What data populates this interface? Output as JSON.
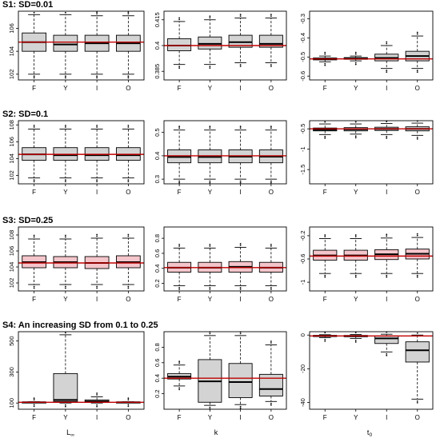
{
  "colors": {
    "box_fill": "#d3d3d3",
    "box_fill_pink": "#f4c6cb",
    "ref_line": "#c00000",
    "median": "#000000"
  },
  "x_axis_labels": [
    {
      "main": "L",
      "sub": "∞"
    },
    {
      "main": "k",
      "sub": ""
    },
    {
      "main": "t",
      "sub": "0"
    }
  ],
  "chart_data": [
    {
      "type": "box",
      "title": "S1: SD=0.01",
      "row": 0,
      "col": 0,
      "categories": [
        "F",
        "Y",
        "I",
        "O"
      ],
      "ylim": [
        101.5,
        107.5
      ],
      "yticks": [
        102,
        104,
        106
      ],
      "ref": 104.8,
      "boxes": [
        {
          "low": 102,
          "q1": 104,
          "med": 104.8,
          "q3": 105.6,
          "high": 107.2
        },
        {
          "low": 102,
          "q1": 104,
          "med": 104.6,
          "q3": 105.4,
          "high": 107.2
        },
        {
          "low": 102,
          "q1": 104,
          "med": 104.7,
          "q3": 105.4,
          "high": 107.1
        },
        {
          "low": 102,
          "q1": 104,
          "med": 104.7,
          "q3": 105.4,
          "high": 107.1
        }
      ]
    },
    {
      "type": "box",
      "title": "",
      "row": 0,
      "col": 1,
      "categories": [
        "F",
        "Y",
        "I",
        "O"
      ],
      "ylim": [
        0.38,
        0.42
      ],
      "yticks": [
        0.385,
        0.4,
        0.415
      ],
      "ref": 0.4,
      "boxes": [
        {
          "low": 0.389,
          "q1": 0.397,
          "med": 0.4,
          "q3": 0.404,
          "high": 0.414
        },
        {
          "low": 0.389,
          "q1": 0.398,
          "med": 0.401,
          "q3": 0.405,
          "high": 0.415
        },
        {
          "low": 0.39,
          "q1": 0.399,
          "med": 0.402,
          "q3": 0.406,
          "high": 0.416
        },
        {
          "low": 0.39,
          "q1": 0.399,
          "med": 0.401,
          "q3": 0.406,
          "high": 0.416
        }
      ]
    },
    {
      "type": "box",
      "title": "",
      "row": 0,
      "col": 2,
      "categories": [
        "F",
        "Y",
        "I",
        "O"
      ],
      "ylim": [
        -0.62,
        -0.26
      ],
      "yticks": [
        -0.3,
        -0.4,
        -0.5,
        -0.6
      ],
      "ref": -0.51,
      "boxes": [
        {
          "low": -0.525,
          "q1": -0.515,
          "med": -0.51,
          "q3": -0.505,
          "high": -0.495
        },
        {
          "low": -0.52,
          "q1": -0.512,
          "med": -0.508,
          "q3": -0.503,
          "high": -0.495
        },
        {
          "low": -0.56,
          "q1": -0.52,
          "med": -0.505,
          "q3": -0.485,
          "high": -0.44
        },
        {
          "low": -0.56,
          "q1": -0.52,
          "med": -0.495,
          "q3": -0.47,
          "high": -0.39
        }
      ]
    },
    {
      "type": "box",
      "title": "S2: SD=0.1",
      "row": 1,
      "col": 0,
      "categories": [
        "F",
        "Y",
        "I",
        "O"
      ],
      "ylim": [
        101,
        108.5
      ],
      "yticks": [
        102,
        104,
        106,
        108
      ],
      "ref": 104.5,
      "boxes": [
        {
          "low": 101.7,
          "q1": 103.8,
          "med": 104.5,
          "q3": 105.3,
          "high": 107.5
        },
        {
          "low": 101.7,
          "q1": 103.8,
          "med": 104.4,
          "q3": 105.3,
          "high": 107.5
        },
        {
          "low": 101.7,
          "q1": 103.8,
          "med": 104.4,
          "q3": 105.3,
          "high": 107.5
        },
        {
          "low": 101.7,
          "q1": 103.8,
          "med": 104.4,
          "q3": 105.3,
          "high": 107.5
        }
      ]
    },
    {
      "type": "box",
      "title": "",
      "row": 1,
      "col": 1,
      "categories": [
        "F",
        "Y",
        "I",
        "O"
      ],
      "ylim": [
        0.28,
        0.55
      ],
      "yticks": [
        0.3,
        0.4,
        0.5
      ],
      "ref": 0.4,
      "boxes": [
        {
          "low": 0.3,
          "q1": 0.37,
          "med": 0.395,
          "q3": 0.425,
          "high": 0.51
        },
        {
          "low": 0.3,
          "q1": 0.37,
          "med": 0.395,
          "q3": 0.425,
          "high": 0.51
        },
        {
          "low": 0.3,
          "q1": 0.37,
          "med": 0.396,
          "q3": 0.425,
          "high": 0.51
        },
        {
          "low": 0.3,
          "q1": 0.37,
          "med": 0.396,
          "q3": 0.425,
          "high": 0.51
        }
      ]
    },
    {
      "type": "box",
      "title": "",
      "row": 1,
      "col": 2,
      "categories": [
        "F",
        "Y",
        "I",
        "O"
      ],
      "ylim": [
        -1.85,
        -0.3
      ],
      "yticks": [
        -0.5,
        -1,
        -1.5
      ],
      "ref": -0.5,
      "boxes": [
        {
          "low": -0.64,
          "q1": -0.55,
          "med": -0.52,
          "q3": -0.48,
          "high": -0.38
        },
        {
          "low": -0.63,
          "q1": -0.55,
          "med": -0.51,
          "q3": -0.47,
          "high": -0.38
        },
        {
          "low": -0.64,
          "q1": -0.54,
          "med": -0.5,
          "q3": -0.46,
          "high": -0.37
        },
        {
          "low": -0.66,
          "q1": -0.55,
          "med": -0.5,
          "q3": -0.45,
          "high": -0.36
        }
      ]
    },
    {
      "type": "box",
      "title": "S3: SD=0.25",
      "row": 2,
      "col": 0,
      "categories": [
        "F",
        "Y",
        "I",
        "O"
      ],
      "ylim": [
        101,
        109
      ],
      "yticks": [
        102,
        104,
        106,
        108
      ],
      "ref": 104.5,
      "boxes": [
        {
          "low": 101.8,
          "q1": 103.9,
          "med": 104.6,
          "q3": 105.4,
          "high": 107.5
        },
        {
          "low": 101.8,
          "q1": 103.9,
          "med": 104.6,
          "q3": 105.3,
          "high": 107.5
        },
        {
          "low": 101.8,
          "q1": 103.8,
          "med": 104.5,
          "q3": 105.3,
          "high": 107.6
        },
        {
          "low": 101.8,
          "q1": 103.9,
          "med": 104.6,
          "q3": 105.4,
          "high": 107.6
        }
      ]
    },
    {
      "type": "box",
      "title": "",
      "row": 2,
      "col": 1,
      "categories": [
        "F",
        "Y",
        "I",
        "O"
      ],
      "ylim": [
        0.1,
        0.95
      ],
      "yticks": [
        0.2,
        0.4,
        0.6,
        0.8
      ],
      "ref": 0.41,
      "boxes": [
        {
          "low": 0.17,
          "q1": 0.35,
          "med": 0.41,
          "q3": 0.48,
          "high": 0.67
        },
        {
          "low": 0.17,
          "q1": 0.35,
          "med": 0.41,
          "q3": 0.48,
          "high": 0.67
        },
        {
          "low": 0.17,
          "q1": 0.35,
          "med": 0.42,
          "q3": 0.49,
          "high": 0.68
        },
        {
          "low": 0.17,
          "q1": 0.35,
          "med": 0.41,
          "q3": 0.48,
          "high": 0.67
        }
      ]
    },
    {
      "type": "box",
      "title": "",
      "row": 2,
      "col": 2,
      "categories": [
        "F",
        "Y",
        "I",
        "O"
      ],
      "ylim": [
        -1.15,
        -0.05
      ],
      "yticks": [
        -0.2,
        -0.6,
        -1
      ],
      "ref": -0.55,
      "boxes": [
        {
          "low": -0.85,
          "q1": -0.62,
          "med": -0.54,
          "q3": -0.45,
          "high": -0.25
        },
        {
          "low": -0.85,
          "q1": -0.62,
          "med": -0.54,
          "q3": -0.45,
          "high": -0.25
        },
        {
          "low": -0.85,
          "q1": -0.61,
          "med": -0.52,
          "q3": -0.44,
          "high": -0.24
        },
        {
          "low": -0.85,
          "q1": -0.6,
          "med": -0.51,
          "q3": -0.43,
          "high": -0.23
        }
      ]
    },
    {
      "type": "box",
      "title": "S4: An increasing SD from 0.1 to 0.25",
      "row": 3,
      "col": 0,
      "categories": [
        "F",
        "Y",
        "I",
        "O"
      ],
      "ylim": [
        60,
        560
      ],
      "yticks": [
        100,
        300,
        500
      ],
      "ref": 105,
      "boxes": [
        {
          "low": 102,
          "q1": 104,
          "med": 105,
          "q3": 106,
          "high": 108
        },
        {
          "low": 100,
          "q1": 110,
          "med": 120,
          "q3": 290,
          "high": 540
        },
        {
          "low": 100,
          "q1": 105,
          "med": 110,
          "q3": 120,
          "high": 140
        },
        {
          "low": 102,
          "q1": 104,
          "med": 105,
          "q3": 106,
          "high": 108
        }
      ]
    },
    {
      "type": "box",
      "title": "",
      "row": 3,
      "col": 1,
      "categories": [
        "F",
        "Y",
        "I",
        "O"
      ],
      "ylim": [
        0,
        1.0
      ],
      "yticks": [
        0.2,
        0.4,
        0.6,
        0.8
      ],
      "ref": 0.4,
      "boxes": [
        {
          "low": 0.3,
          "q1": 0.39,
          "med": 0.42,
          "q3": 0.46,
          "high": 0.57
        },
        {
          "low": 0.05,
          "q1": 0.09,
          "med": 0.36,
          "q3": 0.64,
          "high": 0.95
        },
        {
          "low": 0.06,
          "q1": 0.15,
          "med": 0.35,
          "q3": 0.59,
          "high": 0.95
        },
        {
          "low": 0.1,
          "q1": 0.17,
          "med": 0.26,
          "q3": 0.45,
          "high": 0.83
        }
      ]
    },
    {
      "type": "box",
      "title": "",
      "row": 3,
      "col": 2,
      "categories": [
        "F",
        "Y",
        "I",
        "O"
      ],
      "ylim": [
        -44,
        2
      ],
      "yticks": [
        0,
        -20,
        -40
      ],
      "ref": -0.5,
      "boxes": [
        {
          "low": -1.5,
          "q1": -0.9,
          "med": -0.5,
          "q3": -0.2,
          "high": 0.2
        },
        {
          "low": -2,
          "q1": -1,
          "med": -0.6,
          "q3": -0.2,
          "high": 0.3
        },
        {
          "low": -10,
          "q1": -5,
          "med": -2,
          "q3": -0.5,
          "high": 0.5
        },
        {
          "low": -38,
          "q1": -16,
          "med": -9,
          "q3": -4,
          "high": 0
        }
      ]
    }
  ]
}
